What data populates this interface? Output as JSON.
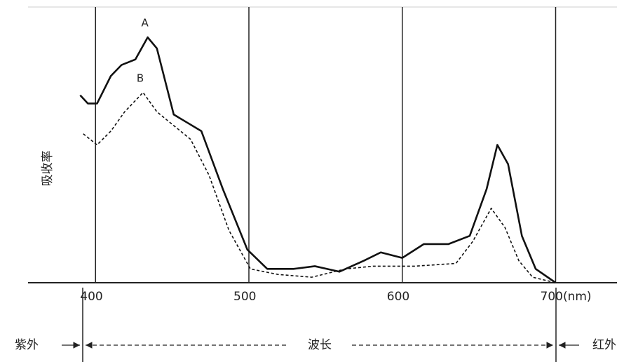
{
  "chart_data": {
    "type": "line",
    "y_label": "吸收率",
    "x": null,
    "series": [
      {
        "name": "A",
        "color": "#111111",
        "line_style": "solid",
        "x": [
          390,
          395,
          401,
          410,
          417,
          426,
          434,
          440,
          451,
          460,
          469,
          483,
          499,
          512,
          529,
          543,
          559,
          575,
          586,
          600,
          614,
          630,
          644,
          655,
          662,
          669,
          678,
          687,
          700
        ],
        "values": [
          68,
          65,
          65,
          75,
          79,
          81,
          89,
          85,
          61,
          58,
          55,
          34,
          12,
          5,
          5,
          6,
          4,
          8,
          11,
          9,
          14,
          14,
          17,
          34,
          50,
          43,
          17,
          5,
          0
        ]
      },
      {
        "name": "B",
        "color": "#111111",
        "line_style": "dashed",
        "x": [
          392,
          401,
          410,
          419,
          431,
          440,
          451,
          462,
          474,
          487,
          501,
          519,
          541,
          563,
          581,
          608,
          635,
          646,
          658,
          667,
          676,
          685,
          700
        ],
        "values": [
          54,
          50,
          55,
          62,
          69,
          62,
          57,
          52,
          39,
          19,
          5,
          3,
          2,
          5,
          6,
          6,
          7,
          15,
          27,
          20,
          8,
          2,
          0
        ]
      }
    ],
    "xlim": [
      356,
      740
    ],
    "ylim": [
      0,
      100
    ],
    "xticks": [
      400,
      500,
      600,
      {
        "value": 700,
        "label": "700(nm)"
      }
    ],
    "grid": true,
    "bottom_labels": [
      "紫外",
      "波长",
      "红外"
    ]
  }
}
